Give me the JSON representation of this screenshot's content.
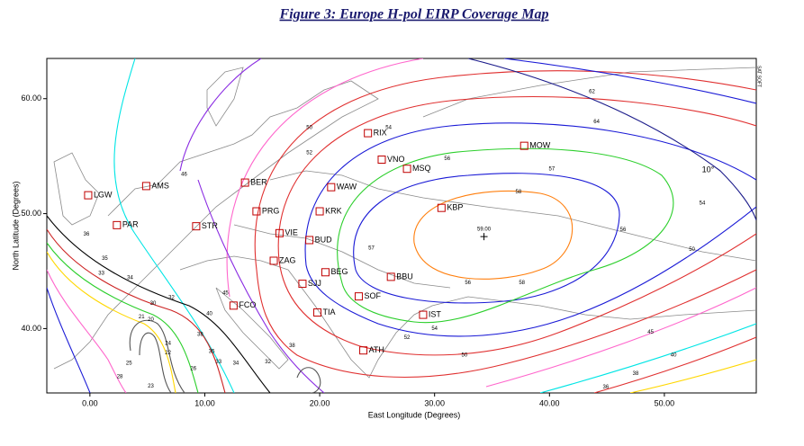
{
  "chart_data": {
    "type": "map",
    "title": "Figure 3:  Europe H-pol EIRP Coverage Map",
    "x_label": "East Longitude (Degrees)",
    "y_label": "North Latitude (Degrees)",
    "xlim": [
      -3.75,
      58
    ],
    "ylim": [
      34.4,
      63.5
    ],
    "xticks": [
      {
        "value": 0,
        "label": "0.00"
      },
      {
        "value": 10,
        "label": "10.00"
      },
      {
        "value": 20,
        "label": "20.00"
      },
      {
        "value": 30,
        "label": "30.00"
      },
      {
        "value": 40,
        "label": "40.00"
      },
      {
        "value": 50,
        "label": "50.00"
      }
    ],
    "yticks": [
      {
        "value": 40,
        "label": "40.00"
      },
      {
        "value": 50,
        "label": "50.00"
      },
      {
        "value": 60,
        "label": "60.00"
      }
    ],
    "cities": [
      {
        "label": "LGW",
        "lon": -0.15,
        "lat": 51.6
      },
      {
        "label": "AMS",
        "lon": 4.9,
        "lat": 52.4
      },
      {
        "label": "PAR",
        "lon": 2.35,
        "lat": 49.0
      },
      {
        "label": "STR",
        "lon": 9.25,
        "lat": 48.9
      },
      {
        "label": "BER",
        "lon": 13.5,
        "lat": 52.7
      },
      {
        "label": "PRG",
        "lon": 14.5,
        "lat": 50.2
      },
      {
        "label": "VIE",
        "lon": 16.5,
        "lat": 48.3
      },
      {
        "label": "BUD",
        "lon": 19.1,
        "lat": 47.7
      },
      {
        "label": "ZAG",
        "lon": 16.0,
        "lat": 45.9
      },
      {
        "label": "BEG",
        "lon": 20.5,
        "lat": 44.9
      },
      {
        "label": "SJJ",
        "lon": 18.5,
        "lat": 43.9
      },
      {
        "label": "FCO",
        "lon": 12.5,
        "lat": 42.0
      },
      {
        "label": "TIA",
        "lon": 19.8,
        "lat": 41.4
      },
      {
        "label": "SOF",
        "lon": 23.4,
        "lat": 42.8
      },
      {
        "label": "ATH",
        "lon": 23.8,
        "lat": 38.1
      },
      {
        "label": "IST",
        "lon": 29.0,
        "lat": 41.2
      },
      {
        "label": "BBU",
        "lon": 26.2,
        "lat": 44.5
      },
      {
        "label": "KRK",
        "lon": 20.0,
        "lat": 50.2
      },
      {
        "label": "WAW",
        "lon": 21.0,
        "lat": 52.3
      },
      {
        "label": "VNO",
        "lon": 25.4,
        "lat": 54.7
      },
      {
        "label": "RIX",
        "lon": 24.2,
        "lat": 57.0
      },
      {
        "label": "MSQ",
        "lon": 27.6,
        "lat": 53.9
      },
      {
        "label": "MOW",
        "lon": 37.8,
        "lat": 55.9
      },
      {
        "label": "KBP",
        "lon": 30.6,
        "lat": 50.5
      }
    ],
    "peak": {
      "label": "59.00",
      "lon": 34.3,
      "lat": 48.0
    },
    "elevation_label": {
      "label": "10°",
      "lon": 53.8,
      "lat": 53.8
    },
    "watermark": "SAT SOFT",
    "contour_labels": [
      {
        "label": "62",
        "lon": 43.7,
        "lat": 60.6
      },
      {
        "label": "64",
        "lon": 44.1,
        "lat": 58.0
      },
      {
        "label": "54",
        "lon": 26.0,
        "lat": 57.5
      },
      {
        "label": "50",
        "lon": 19.1,
        "lat": 57.5
      },
      {
        "label": "52",
        "lon": 19.1,
        "lat": 55.3
      },
      {
        "label": "56",
        "lon": 31.1,
        "lat": 54.8
      },
      {
        "label": "57",
        "lon": 40.2,
        "lat": 53.9
      },
      {
        "label": "58",
        "lon": 37.3,
        "lat": 51.9
      },
      {
        "label": "56",
        "lon": 46.4,
        "lat": 48.6
      },
      {
        "label": "54",
        "lon": 53.3,
        "lat": 50.9
      },
      {
        "label": "50",
        "lon": 52.4,
        "lat": 46.9
      },
      {
        "label": "57",
        "lon": 24.5,
        "lat": 47.0
      },
      {
        "label": "58",
        "lon": 37.6,
        "lat": 44.0
      },
      {
        "label": "56",
        "lon": 32.9,
        "lat": 44.0
      },
      {
        "label": "54",
        "lon": 30.0,
        "lat": 40.0
      },
      {
        "label": "52",
        "lon": 27.6,
        "lat": 39.2
      },
      {
        "label": "50",
        "lon": 32.6,
        "lat": 37.7
      },
      {
        "label": "45",
        "lon": 48.8,
        "lat": 39.7
      },
      {
        "label": "40",
        "lon": 50.8,
        "lat": 37.7
      },
      {
        "label": "38",
        "lon": 47.5,
        "lat": 36.1
      },
      {
        "label": "36",
        "lon": 44.9,
        "lat": 34.9
      },
      {
        "label": "46",
        "lon": 8.2,
        "lat": 53.4
      },
      {
        "label": "36",
        "lon": -0.3,
        "lat": 48.2
      },
      {
        "label": "35",
        "lon": 1.3,
        "lat": 46.1
      },
      {
        "label": "33",
        "lon": 1.0,
        "lat": 44.8
      },
      {
        "label": "34",
        "lon": 3.5,
        "lat": 44.4
      },
      {
        "label": "32",
        "lon": 7.1,
        "lat": 42.7
      },
      {
        "label": "30",
        "lon": 5.5,
        "lat": 42.2
      },
      {
        "label": "40",
        "lon": 10.4,
        "lat": 41.3
      },
      {
        "label": "45",
        "lon": 11.8,
        "lat": 43.1
      },
      {
        "label": "38",
        "lon": 9.6,
        "lat": 39.5
      },
      {
        "label": "35",
        "lon": 10.6,
        "lat": 38.0
      },
      {
        "label": "33",
        "lon": 11.2,
        "lat": 37.1
      },
      {
        "label": "34",
        "lon": 12.7,
        "lat": 37.0
      },
      {
        "label": "32",
        "lon": 15.5,
        "lat": 37.1
      },
      {
        "label": "38",
        "lon": 17.6,
        "lat": 38.5
      },
      {
        "label": "25",
        "lon": 3.4,
        "lat": 37.0
      },
      {
        "label": "28",
        "lon": 2.6,
        "lat": 35.8
      },
      {
        "label": "23",
        "lon": 5.3,
        "lat": 35.0
      },
      {
        "label": "21",
        "lon": 4.5,
        "lat": 41.0
      },
      {
        "label": "20",
        "lon": 5.3,
        "lat": 40.8
      },
      {
        "label": "24",
        "lon": 6.8,
        "lat": 38.7
      },
      {
        "label": "22",
        "lon": 6.8,
        "lat": 37.9
      },
      {
        "label": "26",
        "lon": 9.0,
        "lat": 36.5
      }
    ]
  }
}
